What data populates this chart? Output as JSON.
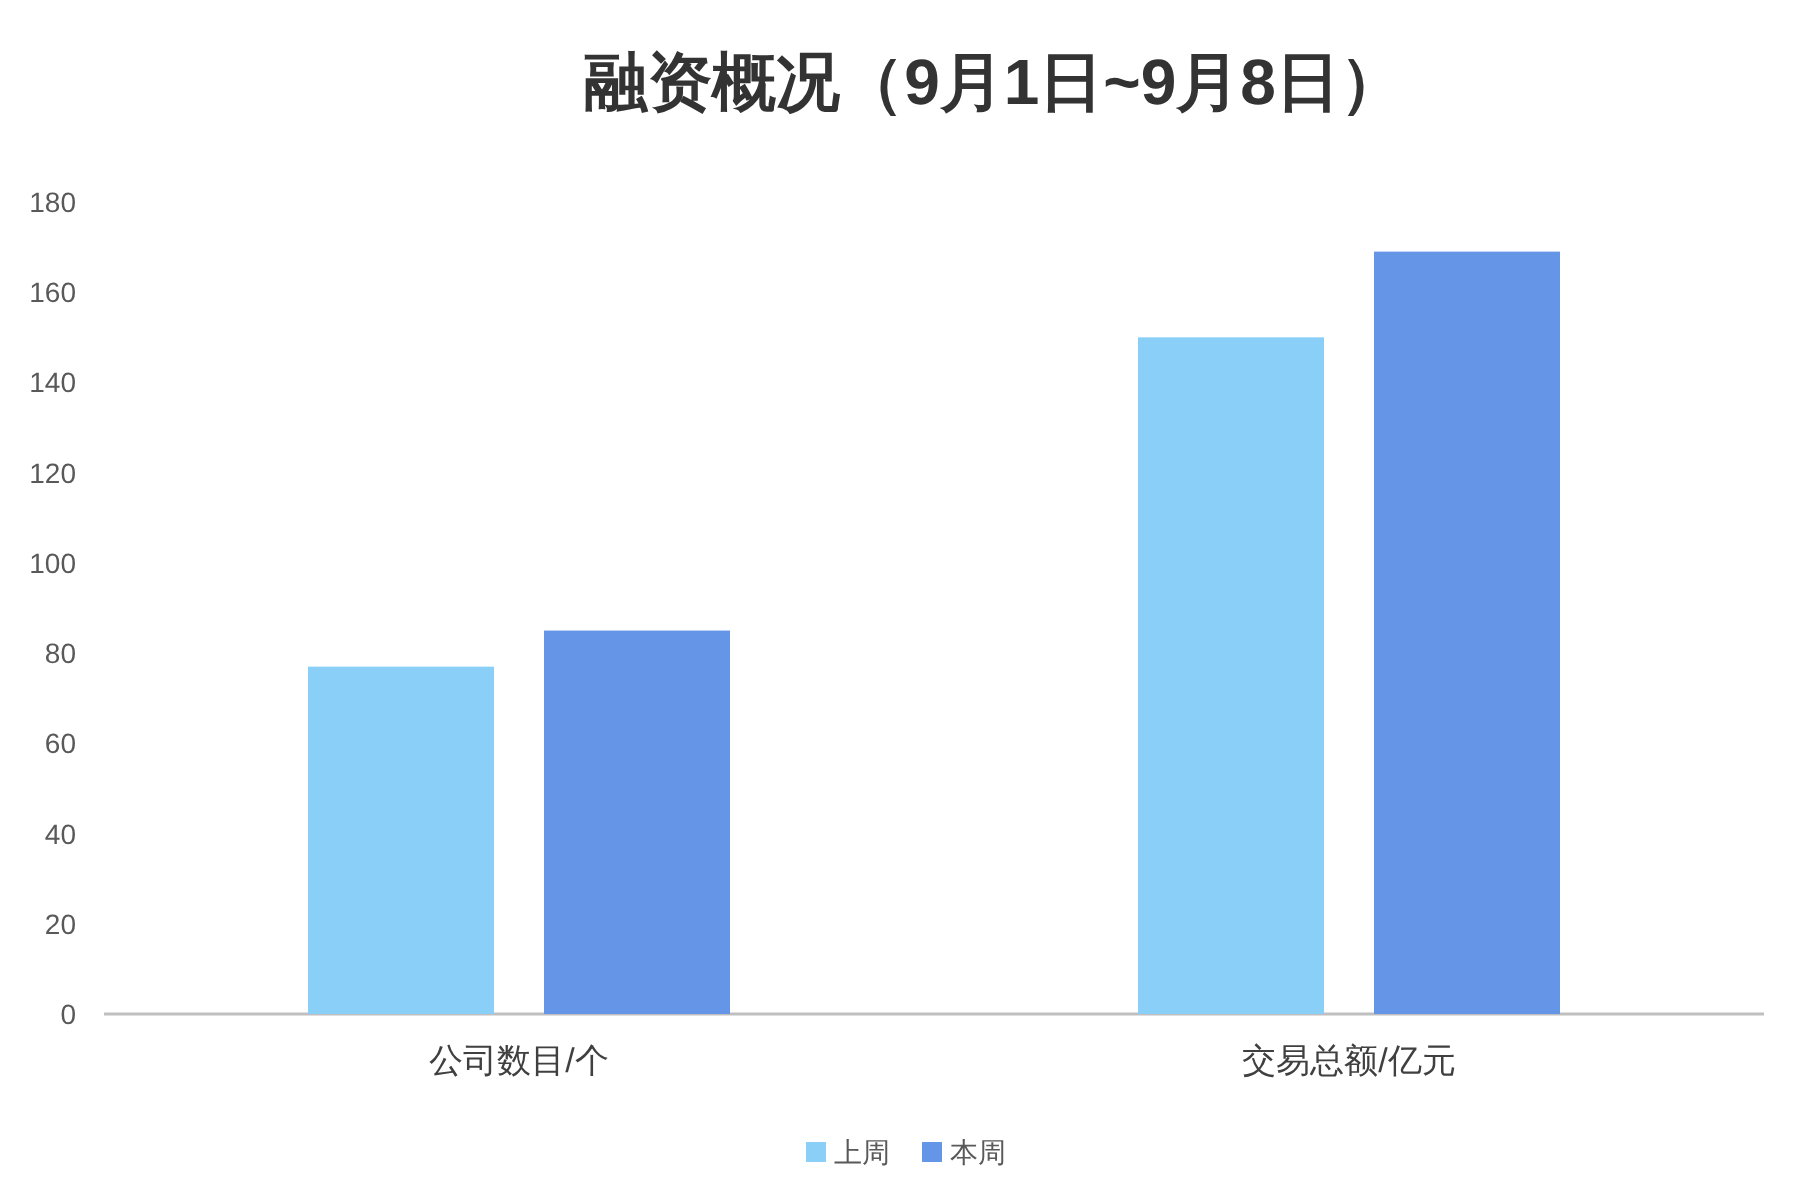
{
  "chart_data": {
    "type": "bar",
    "title": "融资概况（9月1日~9月8日）",
    "categories": [
      "公司数目/个",
      "交易总额/亿元"
    ],
    "series": [
      {
        "name": "上周",
        "color": "#89cff8",
        "values": [
          77,
          150
        ]
      },
      {
        "name": "本周",
        "color": "#6495e6",
        "values": [
          85,
          169
        ]
      }
    ],
    "ylim": [
      0,
      180
    ],
    "yticks": [
      0,
      20,
      40,
      60,
      80,
      100,
      120,
      140,
      160,
      180
    ],
    "grid": false,
    "legend": "bottom"
  }
}
